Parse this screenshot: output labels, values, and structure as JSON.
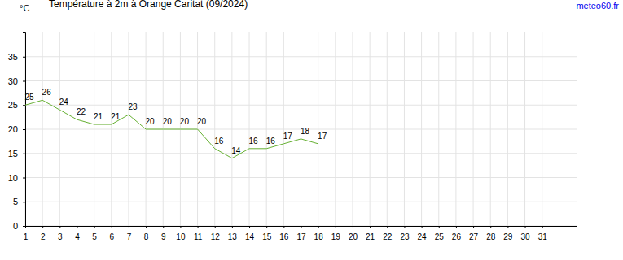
{
  "chart_data": {
    "type": "line",
    "title": "Température à 2m à Orange Caritat (09/2024)",
    "ylabel": "°C",
    "source": "meteo60.fr",
    "x": [
      1,
      2,
      3,
      4,
      5,
      6,
      7,
      8,
      9,
      10,
      11,
      12,
      13,
      14,
      15,
      16,
      17,
      18
    ],
    "values": [
      25,
      26,
      24,
      22,
      21,
      21,
      23,
      20,
      20,
      20,
      20,
      16,
      14,
      16,
      16,
      17,
      18,
      17
    ],
    "color": "#66b032",
    "xlim": [
      1,
      33
    ],
    "xticks": [
      1,
      2,
      3,
      4,
      5,
      6,
      7,
      8,
      9,
      10,
      11,
      12,
      13,
      14,
      15,
      16,
      17,
      18,
      19,
      20,
      21,
      22,
      23,
      24,
      25,
      26,
      27,
      28,
      29,
      30,
      31
    ],
    "ylim": [
      0,
      40
    ],
    "yticks": [
      0,
      5,
      10,
      15,
      20,
      25,
      30,
      35
    ],
    "grid": true,
    "data_labels": true
  }
}
